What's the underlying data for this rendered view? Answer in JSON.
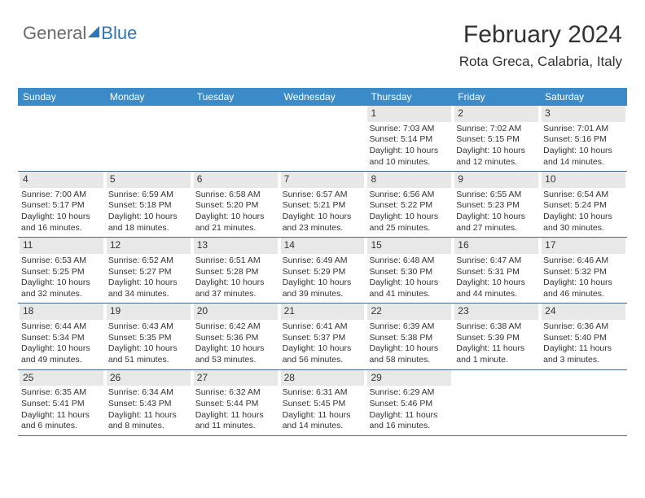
{
  "logo": {
    "part1": "General",
    "part2": "Blue"
  },
  "header": {
    "title": "February 2024",
    "location": "Rota Greca, Calabria, Italy"
  },
  "colors": {
    "header_bg": "#3b8bc9",
    "daynum_bg": "#e8e8e8",
    "week_border": "#4a6a8a",
    "logo_accent": "#2e75b6"
  },
  "day_names": [
    "Sunday",
    "Monday",
    "Tuesday",
    "Wednesday",
    "Thursday",
    "Friday",
    "Saturday"
  ],
  "weeks": [
    [
      {
        "empty": true
      },
      {
        "empty": true
      },
      {
        "empty": true
      },
      {
        "empty": true
      },
      {
        "day": "1",
        "sunrise": "Sunrise: 7:03 AM",
        "sunset": "Sunset: 5:14 PM",
        "daylight1": "Daylight: 10 hours",
        "daylight2": "and 10 minutes."
      },
      {
        "day": "2",
        "sunrise": "Sunrise: 7:02 AM",
        "sunset": "Sunset: 5:15 PM",
        "daylight1": "Daylight: 10 hours",
        "daylight2": "and 12 minutes."
      },
      {
        "day": "3",
        "sunrise": "Sunrise: 7:01 AM",
        "sunset": "Sunset: 5:16 PM",
        "daylight1": "Daylight: 10 hours",
        "daylight2": "and 14 minutes."
      }
    ],
    [
      {
        "day": "4",
        "sunrise": "Sunrise: 7:00 AM",
        "sunset": "Sunset: 5:17 PM",
        "daylight1": "Daylight: 10 hours",
        "daylight2": "and 16 minutes."
      },
      {
        "day": "5",
        "sunrise": "Sunrise: 6:59 AM",
        "sunset": "Sunset: 5:18 PM",
        "daylight1": "Daylight: 10 hours",
        "daylight2": "and 18 minutes."
      },
      {
        "day": "6",
        "sunrise": "Sunrise: 6:58 AM",
        "sunset": "Sunset: 5:20 PM",
        "daylight1": "Daylight: 10 hours",
        "daylight2": "and 21 minutes."
      },
      {
        "day": "7",
        "sunrise": "Sunrise: 6:57 AM",
        "sunset": "Sunset: 5:21 PM",
        "daylight1": "Daylight: 10 hours",
        "daylight2": "and 23 minutes."
      },
      {
        "day": "8",
        "sunrise": "Sunrise: 6:56 AM",
        "sunset": "Sunset: 5:22 PM",
        "daylight1": "Daylight: 10 hours",
        "daylight2": "and 25 minutes."
      },
      {
        "day": "9",
        "sunrise": "Sunrise: 6:55 AM",
        "sunset": "Sunset: 5:23 PM",
        "daylight1": "Daylight: 10 hours",
        "daylight2": "and 27 minutes."
      },
      {
        "day": "10",
        "sunrise": "Sunrise: 6:54 AM",
        "sunset": "Sunset: 5:24 PM",
        "daylight1": "Daylight: 10 hours",
        "daylight2": "and 30 minutes."
      }
    ],
    [
      {
        "day": "11",
        "sunrise": "Sunrise: 6:53 AM",
        "sunset": "Sunset: 5:25 PM",
        "daylight1": "Daylight: 10 hours",
        "daylight2": "and 32 minutes."
      },
      {
        "day": "12",
        "sunrise": "Sunrise: 6:52 AM",
        "sunset": "Sunset: 5:27 PM",
        "daylight1": "Daylight: 10 hours",
        "daylight2": "and 34 minutes."
      },
      {
        "day": "13",
        "sunrise": "Sunrise: 6:51 AM",
        "sunset": "Sunset: 5:28 PM",
        "daylight1": "Daylight: 10 hours",
        "daylight2": "and 37 minutes."
      },
      {
        "day": "14",
        "sunrise": "Sunrise: 6:49 AM",
        "sunset": "Sunset: 5:29 PM",
        "daylight1": "Daylight: 10 hours",
        "daylight2": "and 39 minutes."
      },
      {
        "day": "15",
        "sunrise": "Sunrise: 6:48 AM",
        "sunset": "Sunset: 5:30 PM",
        "daylight1": "Daylight: 10 hours",
        "daylight2": "and 41 minutes."
      },
      {
        "day": "16",
        "sunrise": "Sunrise: 6:47 AM",
        "sunset": "Sunset: 5:31 PM",
        "daylight1": "Daylight: 10 hours",
        "daylight2": "and 44 minutes."
      },
      {
        "day": "17",
        "sunrise": "Sunrise: 6:46 AM",
        "sunset": "Sunset: 5:32 PM",
        "daylight1": "Daylight: 10 hours",
        "daylight2": "and 46 minutes."
      }
    ],
    [
      {
        "day": "18",
        "sunrise": "Sunrise: 6:44 AM",
        "sunset": "Sunset: 5:34 PM",
        "daylight1": "Daylight: 10 hours",
        "daylight2": "and 49 minutes."
      },
      {
        "day": "19",
        "sunrise": "Sunrise: 6:43 AM",
        "sunset": "Sunset: 5:35 PM",
        "daylight1": "Daylight: 10 hours",
        "daylight2": "and 51 minutes."
      },
      {
        "day": "20",
        "sunrise": "Sunrise: 6:42 AM",
        "sunset": "Sunset: 5:36 PM",
        "daylight1": "Daylight: 10 hours",
        "daylight2": "and 53 minutes."
      },
      {
        "day": "21",
        "sunrise": "Sunrise: 6:41 AM",
        "sunset": "Sunset: 5:37 PM",
        "daylight1": "Daylight: 10 hours",
        "daylight2": "and 56 minutes."
      },
      {
        "day": "22",
        "sunrise": "Sunrise: 6:39 AM",
        "sunset": "Sunset: 5:38 PM",
        "daylight1": "Daylight: 10 hours",
        "daylight2": "and 58 minutes."
      },
      {
        "day": "23",
        "sunrise": "Sunrise: 6:38 AM",
        "sunset": "Sunset: 5:39 PM",
        "daylight1": "Daylight: 11 hours",
        "daylight2": "and 1 minute."
      },
      {
        "day": "24",
        "sunrise": "Sunrise: 6:36 AM",
        "sunset": "Sunset: 5:40 PM",
        "daylight1": "Daylight: 11 hours",
        "daylight2": "and 3 minutes."
      }
    ],
    [
      {
        "day": "25",
        "sunrise": "Sunrise: 6:35 AM",
        "sunset": "Sunset: 5:41 PM",
        "daylight1": "Daylight: 11 hours",
        "daylight2": "and 6 minutes."
      },
      {
        "day": "26",
        "sunrise": "Sunrise: 6:34 AM",
        "sunset": "Sunset: 5:43 PM",
        "daylight1": "Daylight: 11 hours",
        "daylight2": "and 8 minutes."
      },
      {
        "day": "27",
        "sunrise": "Sunrise: 6:32 AM",
        "sunset": "Sunset: 5:44 PM",
        "daylight1": "Daylight: 11 hours",
        "daylight2": "and 11 minutes."
      },
      {
        "day": "28",
        "sunrise": "Sunrise: 6:31 AM",
        "sunset": "Sunset: 5:45 PM",
        "daylight1": "Daylight: 11 hours",
        "daylight2": "and 14 minutes."
      },
      {
        "day": "29",
        "sunrise": "Sunrise: 6:29 AM",
        "sunset": "Sunset: 5:46 PM",
        "daylight1": "Daylight: 11 hours",
        "daylight2": "and 16 minutes."
      },
      {
        "empty": true
      },
      {
        "empty": true
      }
    ]
  ]
}
